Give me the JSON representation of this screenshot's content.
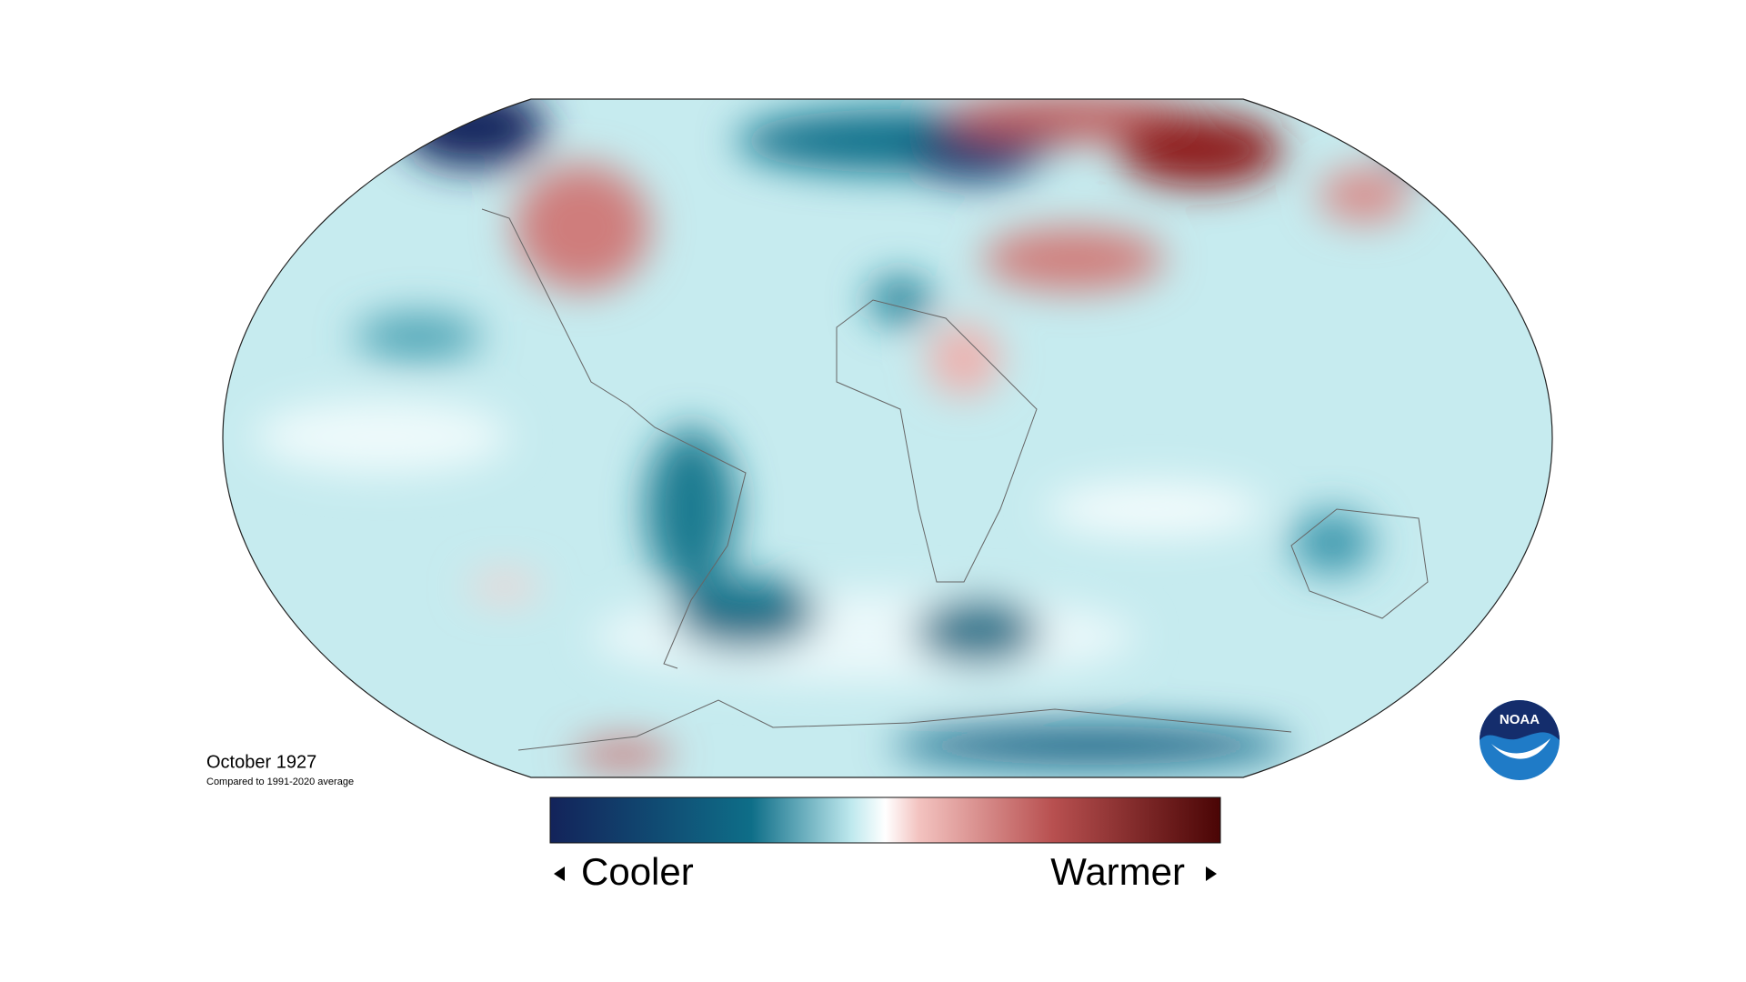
{
  "title": "October 1927",
  "subtitle": "Compared to 1991-2020 average",
  "legend": {
    "low_label": "Cooler",
    "high_label": "Warmer"
  },
  "logo": "NOAA"
}
